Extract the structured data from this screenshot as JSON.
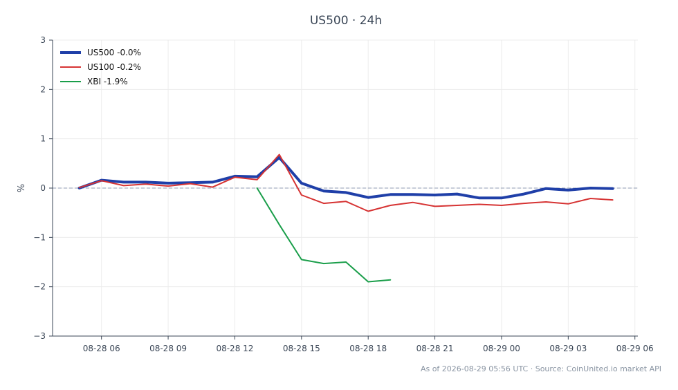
{
  "colors": {
    "background": "#ffffff",
    "grid": "#ececec",
    "zero_line": "#8f9bb3",
    "axis": "#3a4656"
  },
  "footer": "As of 2026-08-29 05:56 UTC · Source: CoinUnited.io market API",
  "chart_data": {
    "type": "line",
    "title": "US500 · 24h",
    "xlabel": "",
    "ylabel": "%",
    "ylim": [
      -3,
      3
    ],
    "xlim": [
      "08-28 03:48",
      "08-29 06:08"
    ],
    "x_ticks": [
      {
        "t": "08-28 06:00",
        "label": "08-28 06"
      },
      {
        "t": "08-28 09:00",
        "label": "08-28 09"
      },
      {
        "t": "08-28 12:00",
        "label": "08-28 12"
      },
      {
        "t": "08-28 15:00",
        "label": "08-28 15"
      },
      {
        "t": "08-28 18:00",
        "label": "08-28 18"
      },
      {
        "t": "08-28 21:00",
        "label": "08-28 21"
      },
      {
        "t": "08-29 00:00",
        "label": "08-29 00"
      },
      {
        "t": "08-29 03:00",
        "label": "08-29 03"
      },
      {
        "t": "08-29 06:00",
        "label": "08-29 06"
      }
    ],
    "y_ticks": [
      3,
      2,
      1,
      0,
      -1,
      -2,
      -3
    ],
    "y_tick_labels": [
      "3",
      "2",
      "1",
      "0",
      "−1",
      "−2",
      "−3"
    ],
    "grid": true,
    "zero_line": true,
    "legend_position": "top-left",
    "series": [
      {
        "name": "US500 -0.0%",
        "color": "#1f3fa8",
        "line": "thick",
        "points": [
          {
            "t": "08-28 05:00",
            "y": 0.0
          },
          {
            "t": "08-28 06:00",
            "y": 0.16
          },
          {
            "t": "08-28 07:00",
            "y": 0.12
          },
          {
            "t": "08-28 08:00",
            "y": 0.12
          },
          {
            "t": "08-28 09:00",
            "y": 0.1
          },
          {
            "t": "08-28 10:00",
            "y": 0.11
          },
          {
            "t": "08-28 11:00",
            "y": 0.12
          },
          {
            "t": "08-28 12:00",
            "y": 0.24
          },
          {
            "t": "08-28 13:00",
            "y": 0.23
          },
          {
            "t": "08-28 14:00",
            "y": 0.62
          },
          {
            "t": "08-28 15:00",
            "y": 0.1
          },
          {
            "t": "08-28 16:00",
            "y": -0.06
          },
          {
            "t": "08-28 17:00",
            "y": -0.09
          },
          {
            "t": "08-28 18:00",
            "y": -0.19
          },
          {
            "t": "08-28 19:00",
            "y": -0.13
          },
          {
            "t": "08-28 20:00",
            "y": -0.13
          },
          {
            "t": "08-28 21:00",
            "y": -0.14
          },
          {
            "t": "08-28 22:00",
            "y": -0.12
          },
          {
            "t": "08-28 23:00",
            "y": -0.2
          },
          {
            "t": "08-29 00:00",
            "y": -0.2
          },
          {
            "t": "08-29 01:00",
            "y": -0.12
          },
          {
            "t": "08-29 02:00",
            "y": -0.01
          },
          {
            "t": "08-29 03:00",
            "y": -0.04
          },
          {
            "t": "08-29 04:00",
            "y": 0.0
          },
          {
            "t": "08-29 05:00",
            "y": -0.01
          }
        ]
      },
      {
        "name": "US100 -0.2%",
        "color": "#d63333",
        "line": "normal",
        "points": [
          {
            "t": "08-28 05:00",
            "y": 0.01
          },
          {
            "t": "08-28 06:00",
            "y": 0.15
          },
          {
            "t": "08-28 07:00",
            "y": 0.05
          },
          {
            "t": "08-28 08:00",
            "y": 0.08
          },
          {
            "t": "08-28 09:00",
            "y": 0.04
          },
          {
            "t": "08-28 10:00",
            "y": 0.09
          },
          {
            "t": "08-28 11:00",
            "y": 0.02
          },
          {
            "t": "08-28 12:00",
            "y": 0.22
          },
          {
            "t": "08-28 13:00",
            "y": 0.17
          },
          {
            "t": "08-28 14:00",
            "y": 0.68
          },
          {
            "t": "08-28 15:00",
            "y": -0.14
          },
          {
            "t": "08-28 16:00",
            "y": -0.31
          },
          {
            "t": "08-28 17:00",
            "y": -0.27
          },
          {
            "t": "08-28 18:00",
            "y": -0.47
          },
          {
            "t": "08-28 19:00",
            "y": -0.35
          },
          {
            "t": "08-28 20:00",
            "y": -0.29
          },
          {
            "t": "08-28 21:00",
            "y": -0.37
          },
          {
            "t": "08-28 22:00",
            "y": -0.35
          },
          {
            "t": "08-28 23:00",
            "y": -0.33
          },
          {
            "t": "08-29 00:00",
            "y": -0.35
          },
          {
            "t": "08-29 01:00",
            "y": -0.31
          },
          {
            "t": "08-29 02:00",
            "y": -0.28
          },
          {
            "t": "08-29 03:00",
            "y": -0.32
          },
          {
            "t": "08-29 04:00",
            "y": -0.21
          },
          {
            "t": "08-29 05:00",
            "y": -0.24
          }
        ]
      },
      {
        "name": "XBI -1.9%",
        "color": "#1a9e4a",
        "line": "normal",
        "points": [
          {
            "t": "08-28 13:00",
            "y": 0.0
          },
          {
            "t": "08-28 14:00",
            "y": -0.74
          },
          {
            "t": "08-28 15:00",
            "y": -1.45
          },
          {
            "t": "08-28 16:00",
            "y": -1.53
          },
          {
            "t": "08-28 17:00",
            "y": -1.5
          },
          {
            "t": "08-28 18:00",
            "y": -1.9
          },
          {
            "t": "08-28 19:00",
            "y": -1.86
          }
        ]
      }
    ]
  }
}
